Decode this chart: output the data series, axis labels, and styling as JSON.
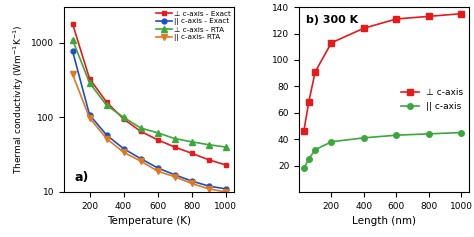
{
  "panel_a": {
    "temp": [
      100,
      200,
      300,
      400,
      500,
      600,
      700,
      800,
      900,
      1000
    ],
    "perp_exact": [
      1800,
      330,
      160,
      95,
      65,
      50,
      40,
      33,
      27,
      23
    ],
    "para_exact": [
      780,
      108,
      58,
      38,
      28,
      21,
      17,
      14,
      12,
      11
    ],
    "perp_rta": [
      1100,
      290,
      145,
      100,
      72,
      62,
      52,
      47,
      43,
      40
    ],
    "para_rta": [
      380,
      98,
      52,
      34,
      26,
      19,
      16,
      13,
      11,
      10
    ],
    "xlabel": "Temperature (K)",
    "ylabel": "Thermal conductivity (Wm$^{-1}$K$^{-1}$)",
    "label": "a)",
    "ylim": [
      10,
      3000
    ],
    "xlim": [
      50,
      1050
    ],
    "yticks": [
      10,
      100,
      1000
    ],
    "xticks": [
      200,
      400,
      600,
      800,
      1000
    ]
  },
  "panel_b": {
    "length": [
      30,
      60,
      100,
      200,
      400,
      600,
      800,
      1000
    ],
    "perp": [
      46,
      68,
      91,
      113,
      124,
      131,
      133,
      135
    ],
    "para": [
      18,
      25,
      32,
      38,
      41,
      43,
      44,
      45
    ],
    "xlabel": "Length (nm)",
    "title": "b) 300 K",
    "ylim": [
      0,
      140
    ],
    "xlim": [
      0,
      1050
    ],
    "yticks": [
      20,
      40,
      60,
      80,
      100,
      120,
      140
    ],
    "xticks": [
      200,
      400,
      600,
      800,
      1000
    ]
  },
  "colors": {
    "red": "#e8191a",
    "blue": "#1a50c8",
    "green": "#3aa83a",
    "orange": "#e07820"
  },
  "legend_a": [
    "⊥ c-axis - Exact",
    "|| c-axis - Exact",
    "⊥ c-axis - RTA",
    "|| c-axis- RTA"
  ],
  "legend_b": [
    "⊥ c-axis",
    "|| c-axis"
  ],
  "figsize": [
    4.74,
    2.37
  ],
  "dpi": 100
}
